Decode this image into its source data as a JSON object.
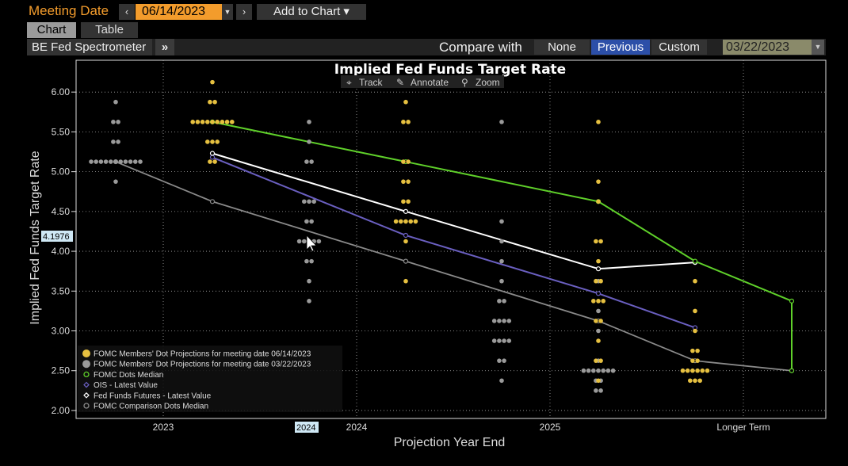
{
  "header": {
    "meeting_label": "Meeting Date",
    "prev_icon": "chevron-left-icon",
    "date_value": "06/14/2023",
    "next_icon": "chevron-right-icon",
    "add_to_chart": "Add to Chart ▾"
  },
  "tabs": [
    {
      "label": "Chart",
      "active": true
    },
    {
      "label": "Table",
      "active": false
    }
  ],
  "toolbar": {
    "spectrometer": "BE Fed Spectrometer",
    "more": "»",
    "compare_label": "Compare with",
    "none": "None",
    "previous": "Previous",
    "custom": "Custom",
    "compare_date": "03/22/2023"
  },
  "chart_tools": {
    "track": "Track",
    "annotate": "Annotate",
    "zoom": "Zoom"
  },
  "crosshair": {
    "y_value": "4.1976",
    "x_value": "2024"
  },
  "colors": {
    "current_dots": "#e6c040",
    "previous_dots": "#9a9a9a",
    "dots_median": "#5fd02a",
    "ois": "#6a5fc0",
    "futures": "#ffffff",
    "comparison_median": "#8a8a8a",
    "crosshair_box": "#cfe8f5"
  },
  "chart_data": {
    "type": "scatter",
    "title": "Implied Fed Funds Target Rate",
    "xlabel": "Projection Year End",
    "ylabel": "Implied Fed Funds Target Rate",
    "categories": [
      "2023",
      "2024",
      "2025",
      "Longer Term"
    ],
    "x_tick_labels": [
      "2023",
      "2024",
      "2025",
      "Longer Term"
    ],
    "y_ticks": [
      "6.00",
      "5.50",
      "5.00",
      "4.50",
      "4.00",
      "3.50",
      "3.00",
      "2.50",
      "2.00"
    ],
    "ylim": [
      1.9,
      6.4
    ],
    "grid": true,
    "legend_position": "bottom-left",
    "series": [
      {
        "name": "FOMC Members' Dot Projections for meeting date 06/14/2023",
        "kind": "dots",
        "values": [
          [
            1,
            6.125
          ],
          [
            1,
            5.875
          ],
          [
            1,
            5.875
          ],
          [
            1,
            5.625
          ],
          [
            1,
            5.625
          ],
          [
            1,
            5.625
          ],
          [
            1,
            5.625
          ],
          [
            1,
            5.625
          ],
          [
            1,
            5.625
          ],
          [
            1,
            5.625
          ],
          [
            1,
            5.625
          ],
          [
            1,
            5.625
          ],
          [
            1,
            5.375
          ],
          [
            1,
            5.375
          ],
          [
            1,
            5.375
          ],
          [
            1,
            5.125
          ],
          [
            1,
            5.125
          ],
          [
            2,
            5.875
          ],
          [
            2,
            5.625
          ],
          [
            2,
            5.625
          ],
          [
            2,
            5.125
          ],
          [
            2,
            5.125
          ],
          [
            2,
            4.875
          ],
          [
            2,
            4.875
          ],
          [
            2,
            4.625
          ],
          [
            2,
            4.625
          ],
          [
            2,
            4.375
          ],
          [
            2,
            4.375
          ],
          [
            2,
            4.375
          ],
          [
            2,
            4.375
          ],
          [
            2,
            4.375
          ],
          [
            2,
            4.125
          ],
          [
            2,
            3.625
          ],
          [
            3,
            5.625
          ],
          [
            3,
            4.875
          ],
          [
            3,
            4.625
          ],
          [
            3,
            4.125
          ],
          [
            3,
            4.125
          ],
          [
            3,
            3.875
          ],
          [
            3,
            3.625
          ],
          [
            3,
            3.625
          ],
          [
            3,
            3.375
          ],
          [
            3,
            3.375
          ],
          [
            3,
            3.375
          ],
          [
            3,
            3.125
          ],
          [
            3,
            3.125
          ],
          [
            3,
            2.875
          ],
          [
            3,
            2.625
          ],
          [
            3,
            2.625
          ],
          [
            3,
            2.375
          ],
          [
            4,
            3.625
          ],
          [
            4,
            3.25
          ],
          [
            4,
            3.0
          ],
          [
            4,
            2.75
          ],
          [
            4,
            2.75
          ],
          [
            4,
            2.625
          ],
          [
            4,
            2.625
          ],
          [
            4,
            2.5
          ],
          [
            4,
            2.5
          ],
          [
            4,
            2.5
          ],
          [
            4,
            2.5
          ],
          [
            4,
            2.5
          ],
          [
            4,
            2.5
          ],
          [
            4,
            2.375
          ],
          [
            4,
            2.375
          ],
          [
            4,
            2.375
          ]
        ]
      },
      {
        "name": "FOMC Members' Dot Projections for meeting date 03/22/2023",
        "kind": "dots",
        "values": [
          [
            1,
            5.875
          ],
          [
            1,
            5.625
          ],
          [
            1,
            5.625
          ],
          [
            1,
            5.375
          ],
          [
            1,
            5.375
          ],
          [
            1,
            5.125
          ],
          [
            1,
            5.125
          ],
          [
            1,
            5.125
          ],
          [
            1,
            5.125
          ],
          [
            1,
            5.125
          ],
          [
            1,
            5.125
          ],
          [
            1,
            5.125
          ],
          [
            1,
            5.125
          ],
          [
            1,
            5.125
          ],
          [
            1,
            5.125
          ],
          [
            1,
            5.125
          ],
          [
            1,
            4.875
          ],
          [
            2,
            5.625
          ],
          [
            2,
            5.375
          ],
          [
            2,
            5.125
          ],
          [
            2,
            5.125
          ],
          [
            2,
            4.625
          ],
          [
            2,
            4.625
          ],
          [
            2,
            4.625
          ],
          [
            2,
            4.375
          ],
          [
            2,
            4.375
          ],
          [
            2,
            4.125
          ],
          [
            2,
            4.125
          ],
          [
            2,
            4.125
          ],
          [
            2,
            4.125
          ],
          [
            2,
            4.125
          ],
          [
            2,
            3.875
          ],
          [
            2,
            3.875
          ],
          [
            2,
            3.625
          ],
          [
            2,
            3.375
          ],
          [
            3,
            5.625
          ],
          [
            3,
            4.375
          ],
          [
            3,
            4.125
          ],
          [
            3,
            3.875
          ],
          [
            3,
            3.625
          ],
          [
            3,
            3.375
          ],
          [
            3,
            3.375
          ],
          [
            3,
            3.125
          ],
          [
            3,
            3.125
          ],
          [
            3,
            3.125
          ],
          [
            3,
            3.125
          ],
          [
            3,
            2.875
          ],
          [
            3,
            2.875
          ],
          [
            3,
            2.875
          ],
          [
            3,
            2.875
          ],
          [
            3,
            2.625
          ],
          [
            3,
            2.625
          ],
          [
            3,
            2.375
          ],
          [
            4,
            3.625
          ],
          [
            4,
            3.25
          ],
          [
            4,
            3.0
          ],
          [
            4,
            2.625
          ],
          [
            4,
            2.5
          ],
          [
            4,
            2.5
          ],
          [
            4,
            2.5
          ],
          [
            4,
            2.5
          ],
          [
            4,
            2.5
          ],
          [
            4,
            2.5
          ],
          [
            4,
            2.5
          ],
          [
            4,
            2.375
          ],
          [
            4,
            2.375
          ],
          [
            4,
            2.25
          ],
          [
            4,
            2.25
          ]
        ]
      },
      {
        "name": "FOMC Dots Median",
        "kind": "line",
        "values": [
          [
            1,
            5.625
          ],
          [
            2,
            5.125
          ],
          [
            3,
            4.625
          ],
          [
            4,
            3.875
          ],
          [
            5,
            3.375
          ],
          [
            6,
            2.5
          ]
        ]
      },
      {
        "name": "OIS - Latest Value",
        "kind": "line",
        "values": [
          [
            1,
            5.18
          ],
          [
            2,
            4.2
          ],
          [
            3,
            3.47
          ],
          [
            4,
            3.04
          ]
        ]
      },
      {
        "name": "Fed Funds Futures - Latest Value",
        "kind": "line",
        "values": [
          [
            1,
            5.23
          ],
          [
            2,
            4.5
          ],
          [
            3,
            3.78
          ],
          [
            4,
            3.86
          ]
        ]
      },
      {
        "name": "FOMC Comparison Dots Median",
        "kind": "line",
        "values": [
          [
            0,
            5.125
          ],
          [
            1,
            4.625
          ],
          [
            2,
            3.875
          ],
          [
            3,
            3.125
          ],
          [
            4,
            2.625
          ],
          [
            5,
            2.5
          ]
        ]
      }
    ]
  }
}
